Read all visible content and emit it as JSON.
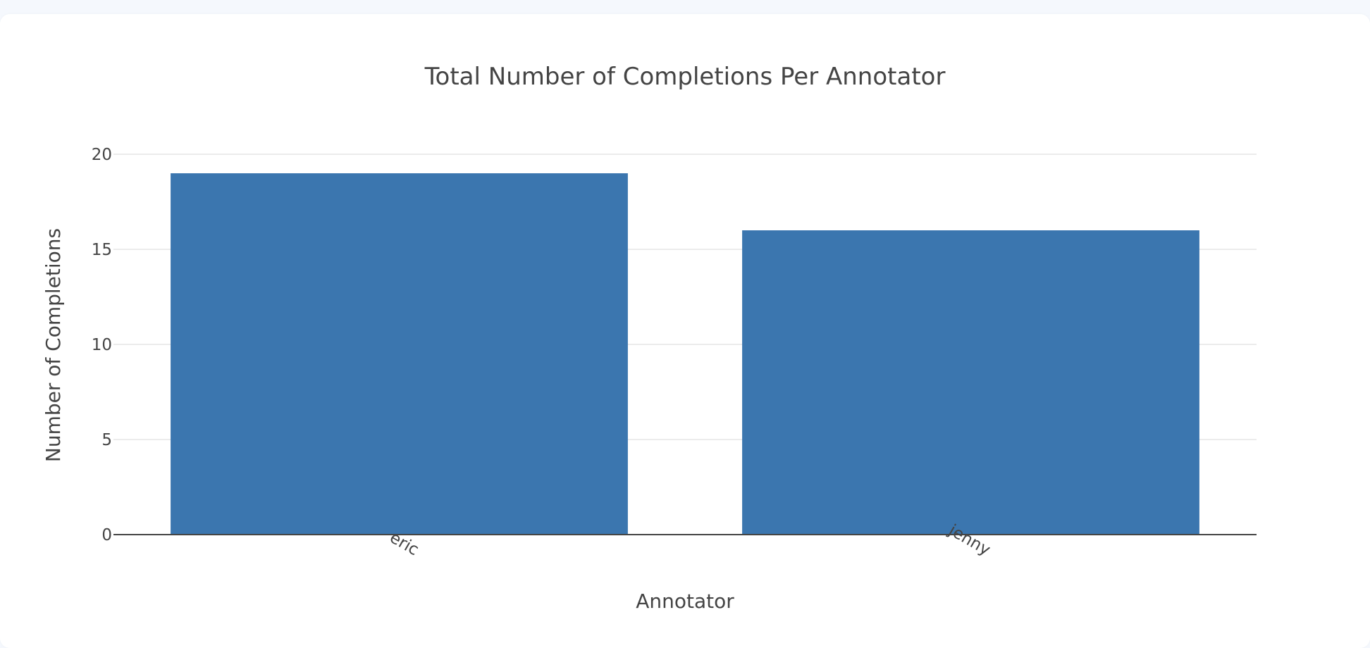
{
  "chart_data": {
    "type": "bar",
    "title": "Total Number of Completions Per Annotator",
    "xlabel": "Annotator",
    "ylabel": "Number of Completions",
    "categories": [
      "eric",
      "jenny"
    ],
    "values": [
      19,
      16
    ],
    "ylim": [
      0,
      20
    ],
    "yticks": [
      0,
      5,
      10,
      15,
      20
    ],
    "grid": true,
    "bar_color": "#3b76af",
    "grid_color": "#e6e6e6",
    "axis_color": "#444444"
  }
}
